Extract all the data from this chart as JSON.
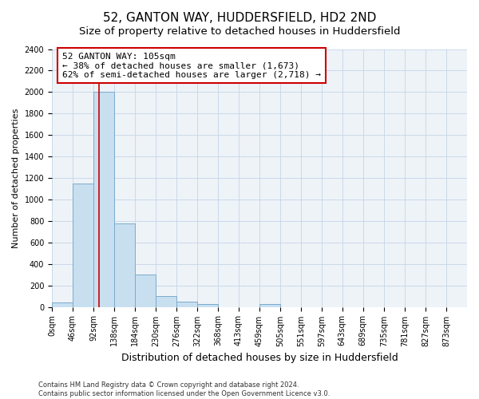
{
  "title": "52, GANTON WAY, HUDDERSFIELD, HD2 2ND",
  "subtitle": "Size of property relative to detached houses in Huddersfield",
  "xlabel": "Distribution of detached houses by size in Huddersfield",
  "ylabel": "Number of detached properties",
  "footer_line1": "Contains HM Land Registry data © Crown copyright and database right 2024.",
  "footer_line2": "Contains public sector information licensed under the Open Government Licence v3.0.",
  "bin_edges": [
    0,
    46,
    92,
    138,
    184,
    230,
    276,
    322,
    368,
    413,
    459,
    505,
    551,
    597,
    643,
    689,
    735,
    781,
    827,
    873,
    919
  ],
  "bin_counts": [
    40,
    1150,
    2000,
    780,
    300,
    100,
    50,
    30,
    0,
    0,
    30,
    0,
    0,
    0,
    0,
    0,
    0,
    0,
    0,
    0
  ],
  "property_size": 105,
  "bar_color": "#c8dff0",
  "bar_edge_color": "#7aaccc",
  "vline_color": "#cc0000",
  "annotation_line1": "52 GANTON WAY: 105sqm",
  "annotation_line2": "← 38% of detached houses are smaller (1,673)",
  "annotation_line3": "62% of semi-detached houses are larger (2,718) →",
  "annotation_box_edgecolor": "#cc0000",
  "ylim_max": 2400,
  "yticks": [
    0,
    200,
    400,
    600,
    800,
    1000,
    1200,
    1400,
    1600,
    1800,
    2000,
    2200,
    2400
  ],
  "grid_color": "#c5d5e5",
  "ax_facecolor": "#eef3f8",
  "title_fontsize": 11,
  "subtitle_fontsize": 9.5,
  "xlabel_fontsize": 9,
  "ylabel_fontsize": 8,
  "tick_fontsize": 7,
  "annotation_fontsize": 8,
  "footer_fontsize": 6
}
